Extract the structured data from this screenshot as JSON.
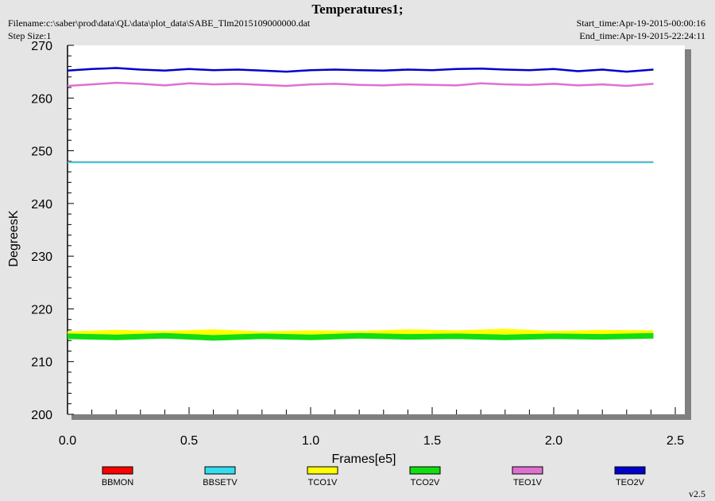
{
  "header": {
    "title": "Temperatures1;",
    "filename": "Filename:c:\\saber\\prod\\data\\QL\\data\\plot_data\\SABE_Tlm2015109000000.dat",
    "step_size": "Step Size:1",
    "start_time": "Start_time:Apr-19-2015-00:00:16",
    "end_time": "End_time:Apr-19-2015-22:24:11"
  },
  "version": "v2.5",
  "chart_data": {
    "type": "line",
    "title": "Temperatures1;",
    "xlabel": "Frames[e5]",
    "ylabel": "DegreesK",
    "xlim": [
      0,
      2.5
    ],
    "ylim": [
      200,
      270
    ],
    "x_ticks": [
      "0.0",
      "0.5",
      "1.0",
      "1.5",
      "2.0",
      "2.5"
    ],
    "y_ticks": [
      "200",
      "210",
      "220",
      "230",
      "240",
      "250",
      "260",
      "270"
    ],
    "legend_position": "bottom",
    "series": [
      {
        "name": "BBMON",
        "color": "#ff0000",
        "x": [
          0,
          2.41
        ],
        "values": [
          247.9,
          247.9
        ]
      },
      {
        "name": "BBSETV",
        "color": "#33ddee",
        "x": [
          0,
          2.41
        ],
        "values": [
          247.8,
          247.8
        ]
      },
      {
        "name": "TCO1V",
        "color": "#ffff00",
        "x": [
          0,
          0.2,
          0.4,
          0.6,
          0.8,
          1.0,
          1.2,
          1.4,
          1.6,
          1.8,
          2.0,
          2.2,
          2.41
        ],
        "values": [
          215.2,
          215.5,
          215.3,
          215.6,
          215.2,
          215.4,
          215.3,
          215.6,
          215.4,
          215.7,
          215.3,
          215.5,
          215.4
        ]
      },
      {
        "name": "TCO2V",
        "color": "#11dd11",
        "x": [
          0,
          0.2,
          0.4,
          0.6,
          0.8,
          1.0,
          1.2,
          1.4,
          1.6,
          1.8,
          2.0,
          2.2,
          2.41
        ],
        "values": [
          214.8,
          214.6,
          214.9,
          214.5,
          214.8,
          214.6,
          214.9,
          214.7,
          214.8,
          214.6,
          214.8,
          214.7,
          214.9
        ]
      },
      {
        "name": "TEO1V",
        "color": "#e070d0",
        "x": [
          0,
          0.1,
          0.2,
          0.3,
          0.4,
          0.5,
          0.6,
          0.7,
          0.8,
          0.9,
          1.0,
          1.1,
          1.2,
          1.3,
          1.4,
          1.5,
          1.6,
          1.7,
          1.8,
          1.9,
          2.0,
          2.1,
          2.2,
          2.3,
          2.41
        ],
        "values": [
          262.3,
          262.6,
          262.9,
          262.7,
          262.4,
          262.8,
          262.6,
          262.7,
          262.5,
          262.3,
          262.6,
          262.7,
          262.5,
          262.4,
          262.6,
          262.5,
          262.4,
          262.8,
          262.6,
          262.5,
          262.7,
          262.4,
          262.6,
          262.3,
          262.7
        ]
      },
      {
        "name": "TEO2V",
        "color": "#0000cc",
        "x": [
          0,
          0.1,
          0.2,
          0.3,
          0.4,
          0.5,
          0.6,
          0.7,
          0.8,
          0.9,
          1.0,
          1.1,
          1.2,
          1.3,
          1.4,
          1.5,
          1.6,
          1.7,
          1.8,
          1.9,
          2.0,
          2.1,
          2.2,
          2.3,
          2.41
        ],
        "values": [
          265.2,
          265.5,
          265.7,
          265.4,
          265.2,
          265.5,
          265.3,
          265.4,
          265.2,
          265.0,
          265.3,
          265.4,
          265.3,
          265.2,
          265.4,
          265.3,
          265.5,
          265.6,
          265.4,
          265.3,
          265.5,
          265.1,
          265.4,
          265.0,
          265.4
        ]
      }
    ]
  }
}
